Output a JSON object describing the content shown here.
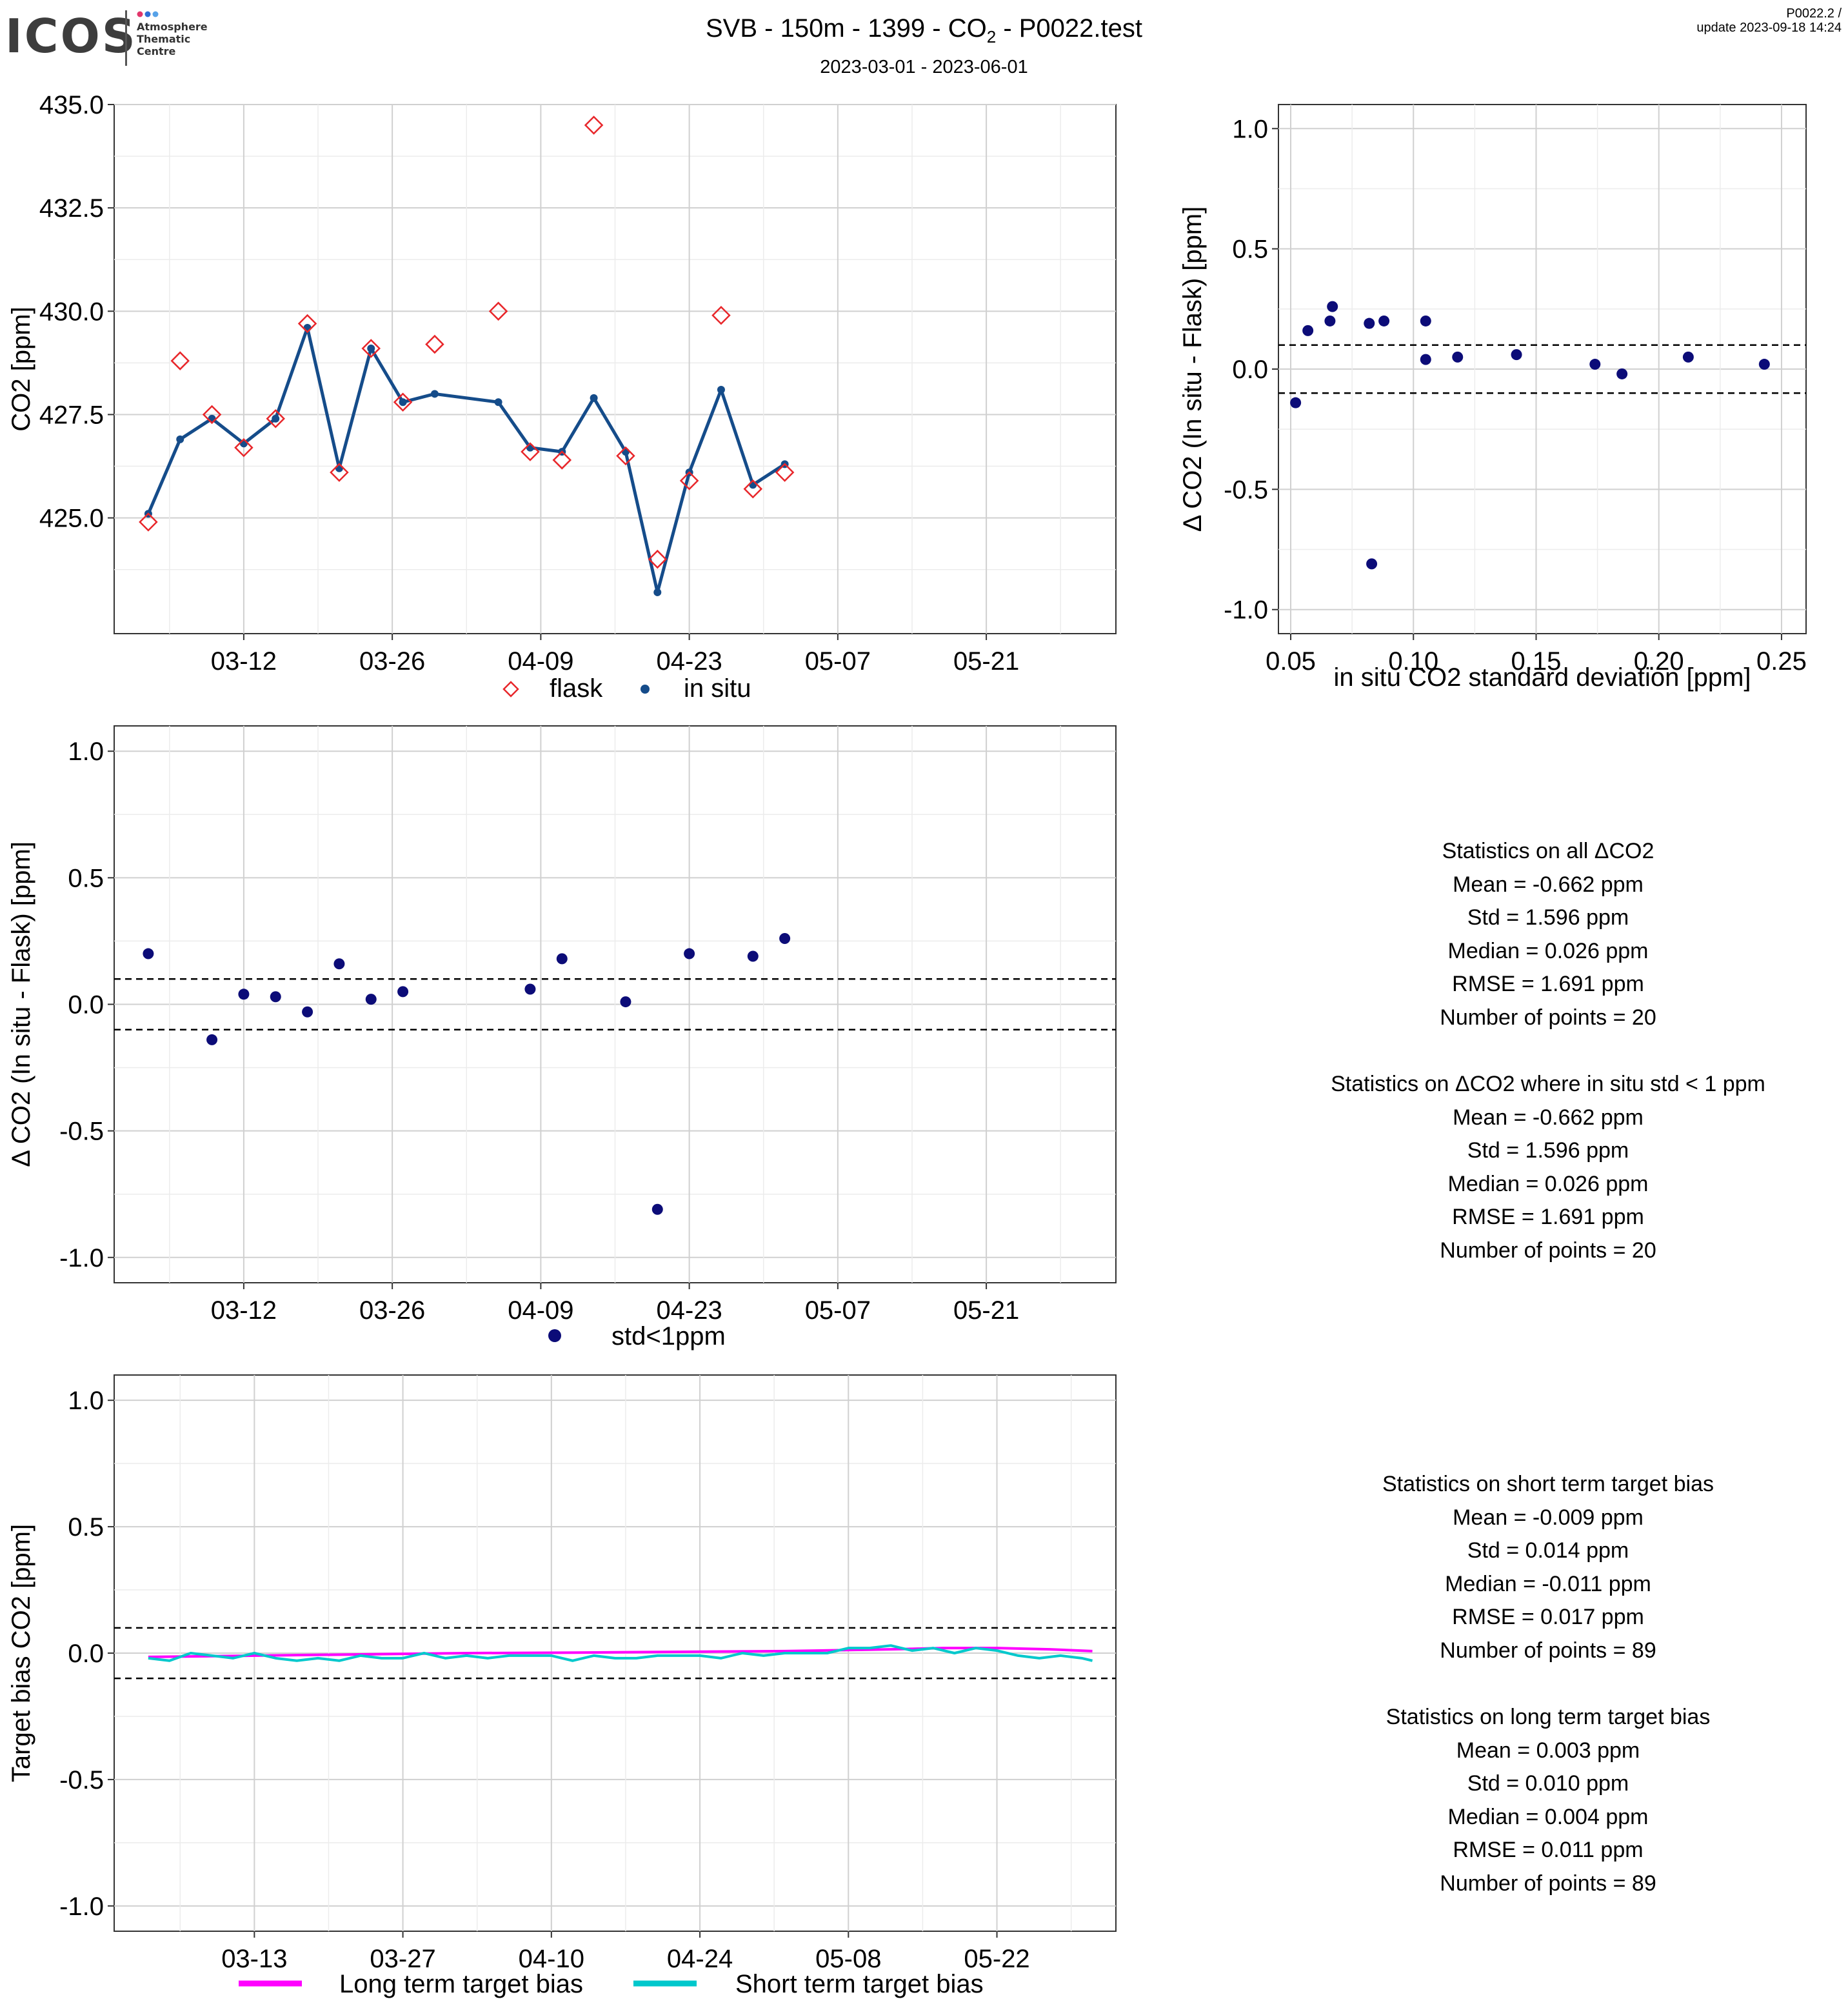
{
  "logo": {
    "word": "ICOS",
    "sub_lines": [
      "Atmosphere",
      "Thematic",
      "Centre"
    ],
    "dot_colors": [
      "#e2366b",
      "#2f6fd6",
      "#56a2e8"
    ]
  },
  "header": {
    "title_prefix": "SVB - 150m - 1399 - CO",
    "title_sub": "2",
    "title_suffix": " - P0022.test",
    "date_range": "2023-03-01 - 2023-06-01",
    "version": "P0022.2 /",
    "update": "update  2023-09-18 14:24"
  },
  "colors": {
    "flask": "#e8262a",
    "insitu": "#154c8a",
    "delta": "#0c0c78",
    "long_term": "#ff00ff",
    "short_term": "#00c8cc"
  },
  "stats_delta_all": {
    "title": "Statistics on all ΔCO2",
    "lines": [
      "Mean =  -0.662 ppm",
      "Std =  1.596 ppm",
      "Median =  0.026 ppm",
      "RMSE =  1.691 ppm",
      "Number of points =  20"
    ]
  },
  "stats_delta_std": {
    "title": "Statistics on ΔCO2 where in situ std < 1 ppm",
    "lines": [
      "Mean =  -0.662 ppm",
      "Std =  1.596 ppm",
      "Median =  0.026 ppm",
      "RMSE =  1.691 ppm",
      "Number of points =  20"
    ]
  },
  "stats_short": {
    "title": "Statistics on short term target bias",
    "lines": [
      "Mean =  -0.009 ppm",
      "Std =  0.014 ppm",
      "Median =  -0.011 ppm",
      "RMSE =  0.017 ppm",
      "Number of points =  89"
    ]
  },
  "stats_long": {
    "title": "Statistics on long term target bias",
    "lines": [
      "Mean =  0.003 ppm",
      "Std =  0.010 ppm",
      "Median =  0.004 ppm",
      "RMSE =  0.011 ppm",
      "Number of points =  89"
    ]
  },
  "chart_data": [
    {
      "id": "co2_timeseries",
      "type": "line",
      "xlabel": "",
      "ylabel": "CO2 [ppm]",
      "x_range": [
        "2023-03-01",
        "2023-06-01"
      ],
      "x_ticks": [
        "03-12",
        "03-26",
        "04-09",
        "04-23",
        "05-07",
        "05-21"
      ],
      "ylim": [
        422.2,
        435.0
      ],
      "y_ticks": [
        "425.0",
        "427.5",
        "430.0",
        "432.5",
        "435.0"
      ],
      "grid": true,
      "legend": [
        "flask",
        "in situ"
      ],
      "legend_position": "bottom",
      "series": [
        {
          "name": "flask",
          "style": "open-diamond",
          "x": [
            "2023-03-03",
            "2023-03-06",
            "2023-03-09",
            "2023-03-12",
            "2023-03-15",
            "2023-03-18",
            "2023-03-21",
            "2023-03-24",
            "2023-03-27",
            "2023-03-30",
            "2023-04-05",
            "2023-04-08",
            "2023-04-11",
            "2023-04-14",
            "2023-04-17",
            "2023-04-20",
            "2023-04-23",
            "2023-04-26",
            "2023-04-29",
            "2023-05-02"
          ],
          "y": [
            424.9,
            428.8,
            427.5,
            426.7,
            427.4,
            429.7,
            426.1,
            429.1,
            427.8,
            429.2,
            430.0,
            426.6,
            426.4,
            434.5,
            426.5,
            424.0,
            425.9,
            429.9,
            425.7,
            426.1
          ]
        },
        {
          "name": "in situ",
          "style": "line-dots",
          "x": [
            "2023-03-03",
            "2023-03-06",
            "2023-03-09",
            "2023-03-12",
            "2023-03-15",
            "2023-03-18",
            "2023-03-21",
            "2023-03-24",
            "2023-03-27",
            "2023-03-30",
            "2023-04-05",
            "2023-04-08",
            "2023-04-11",
            "2023-04-14",
            "2023-04-17",
            "2023-04-20",
            "2023-04-23",
            "2023-04-26",
            "2023-04-29",
            "2023-05-02"
          ],
          "y": [
            425.1,
            426.9,
            427.4,
            426.8,
            427.4,
            429.6,
            426.2,
            429.1,
            427.8,
            428.0,
            427.8,
            426.7,
            426.6,
            427.9,
            426.6,
            423.2,
            426.1,
            428.1,
            425.8,
            426.3
          ]
        }
      ]
    },
    {
      "id": "delta_vs_std",
      "type": "scatter",
      "xlabel": "in situ CO2 standard deviation [ppm]",
      "ylabel": "Δ CO2 (In situ - Flask) [ppm]",
      "xlim": [
        0.045,
        0.26
      ],
      "x_ticks": [
        "0.05",
        "0.10",
        "0.15",
        "0.20",
        "0.25"
      ],
      "ylim": [
        -1.1,
        1.1
      ],
      "y_ticks": [
        "-1.0",
        "-0.5",
        "0.0",
        "0.5",
        "1.0"
      ],
      "hlines": [
        0.1,
        -0.1
      ],
      "grid": true,
      "points": {
        "x": [
          0.052,
          0.057,
          0.066,
          0.067,
          0.082,
          0.088,
          0.083,
          0.105,
          0.105,
          0.118,
          0.142,
          0.174,
          0.185,
          0.212,
          0.243
        ],
        "y": [
          -0.14,
          0.16,
          0.2,
          0.26,
          0.19,
          0.2,
          -0.81,
          0.2,
          0.04,
          0.05,
          0.06,
          0.02,
          -0.02,
          0.05,
          0.02
        ]
      }
    },
    {
      "id": "delta_timeseries",
      "type": "scatter",
      "xlabel": "",
      "ylabel": "Δ CO2 (In situ - Flask) [ppm]",
      "x_range": [
        "2023-03-01",
        "2023-06-01"
      ],
      "x_ticks": [
        "03-12",
        "03-26",
        "04-09",
        "04-23",
        "05-07",
        "05-21"
      ],
      "ylim": [
        -1.1,
        1.1
      ],
      "y_ticks": [
        "-1.0",
        "-0.5",
        "0.0",
        "0.5",
        "1.0"
      ],
      "hlines": [
        0.1,
        -0.1
      ],
      "grid": true,
      "legend": [
        "std<1ppm"
      ],
      "legend_position": "bottom",
      "points": {
        "x": [
          "2023-03-03",
          "2023-03-09",
          "2023-03-12",
          "2023-03-15",
          "2023-03-18",
          "2023-03-21",
          "2023-03-24",
          "2023-03-27",
          "2023-04-08",
          "2023-04-11",
          "2023-04-17",
          "2023-04-20",
          "2023-04-23",
          "2023-04-29",
          "2023-05-02"
        ],
        "y": [
          0.2,
          -0.14,
          0.04,
          0.03,
          -0.03,
          0.16,
          0.02,
          0.05,
          0.06,
          0.18,
          0.01,
          -0.81,
          0.2,
          0.19,
          0.26
        ]
      }
    },
    {
      "id": "target_bias",
      "type": "line",
      "xlabel": "",
      "ylabel": "Target bias CO2 [ppm]",
      "x_range": [
        "2023-03-01",
        "2023-06-01"
      ],
      "x_ticks": [
        "03-13",
        "03-27",
        "04-10",
        "04-24",
        "05-08",
        "05-22"
      ],
      "ylim": [
        -1.1,
        1.1
      ],
      "y_ticks": [
        "-1.0",
        "-0.5",
        "0.0",
        "0.5",
        "1.0"
      ],
      "hlines": [
        0.1,
        -0.1
      ],
      "grid": true,
      "legend": [
        "Long term target bias",
        "Short term target bias"
      ],
      "legend_position": "bottom",
      "series": [
        {
          "name": "Long term target bias",
          "x": [
            "2023-03-03",
            "2023-03-13",
            "2023-03-23",
            "2023-04-02",
            "2023-04-12",
            "2023-04-22",
            "2023-05-02",
            "2023-05-12",
            "2023-05-17",
            "2023-05-22",
            "2023-05-27",
            "2023-05-31"
          ],
          "y": [
            -0.015,
            -0.01,
            -0.005,
            0.0,
            0.002,
            0.005,
            0.008,
            0.015,
            0.02,
            0.02,
            0.015,
            0.008
          ]
        },
        {
          "name": "Short term target bias",
          "x": [
            "2023-03-03",
            "2023-03-05",
            "2023-03-07",
            "2023-03-09",
            "2023-03-11",
            "2023-03-13",
            "2023-03-15",
            "2023-03-17",
            "2023-03-19",
            "2023-03-21",
            "2023-03-23",
            "2023-03-25",
            "2023-03-27",
            "2023-03-29",
            "2023-03-31",
            "2023-04-02",
            "2023-04-04",
            "2023-04-06",
            "2023-04-08",
            "2023-04-10",
            "2023-04-12",
            "2023-04-14",
            "2023-04-16",
            "2023-04-18",
            "2023-04-20",
            "2023-04-22",
            "2023-04-24",
            "2023-04-26",
            "2023-04-28",
            "2023-04-30",
            "2023-05-02",
            "2023-05-04",
            "2023-05-06",
            "2023-05-08",
            "2023-05-10",
            "2023-05-12",
            "2023-05-14",
            "2023-05-16",
            "2023-05-18",
            "2023-05-20",
            "2023-05-22",
            "2023-05-24",
            "2023-05-26",
            "2023-05-28",
            "2023-05-30",
            "2023-05-31"
          ],
          "y": [
            -0.02,
            -0.03,
            0.0,
            -0.01,
            -0.02,
            0.0,
            -0.02,
            -0.03,
            -0.02,
            -0.03,
            -0.01,
            -0.02,
            -0.02,
            0.0,
            -0.02,
            -0.01,
            -0.02,
            -0.01,
            -0.01,
            -0.01,
            -0.03,
            -0.01,
            -0.02,
            -0.02,
            -0.01,
            -0.01,
            -0.01,
            -0.02,
            0.0,
            -0.01,
            0.0,
            0.0,
            0.0,
            0.02,
            0.02,
            0.03,
            0.01,
            0.02,
            0.0,
            0.02,
            0.01,
            -0.01,
            -0.02,
            -0.01,
            -0.02,
            -0.03
          ]
        }
      ]
    }
  ]
}
